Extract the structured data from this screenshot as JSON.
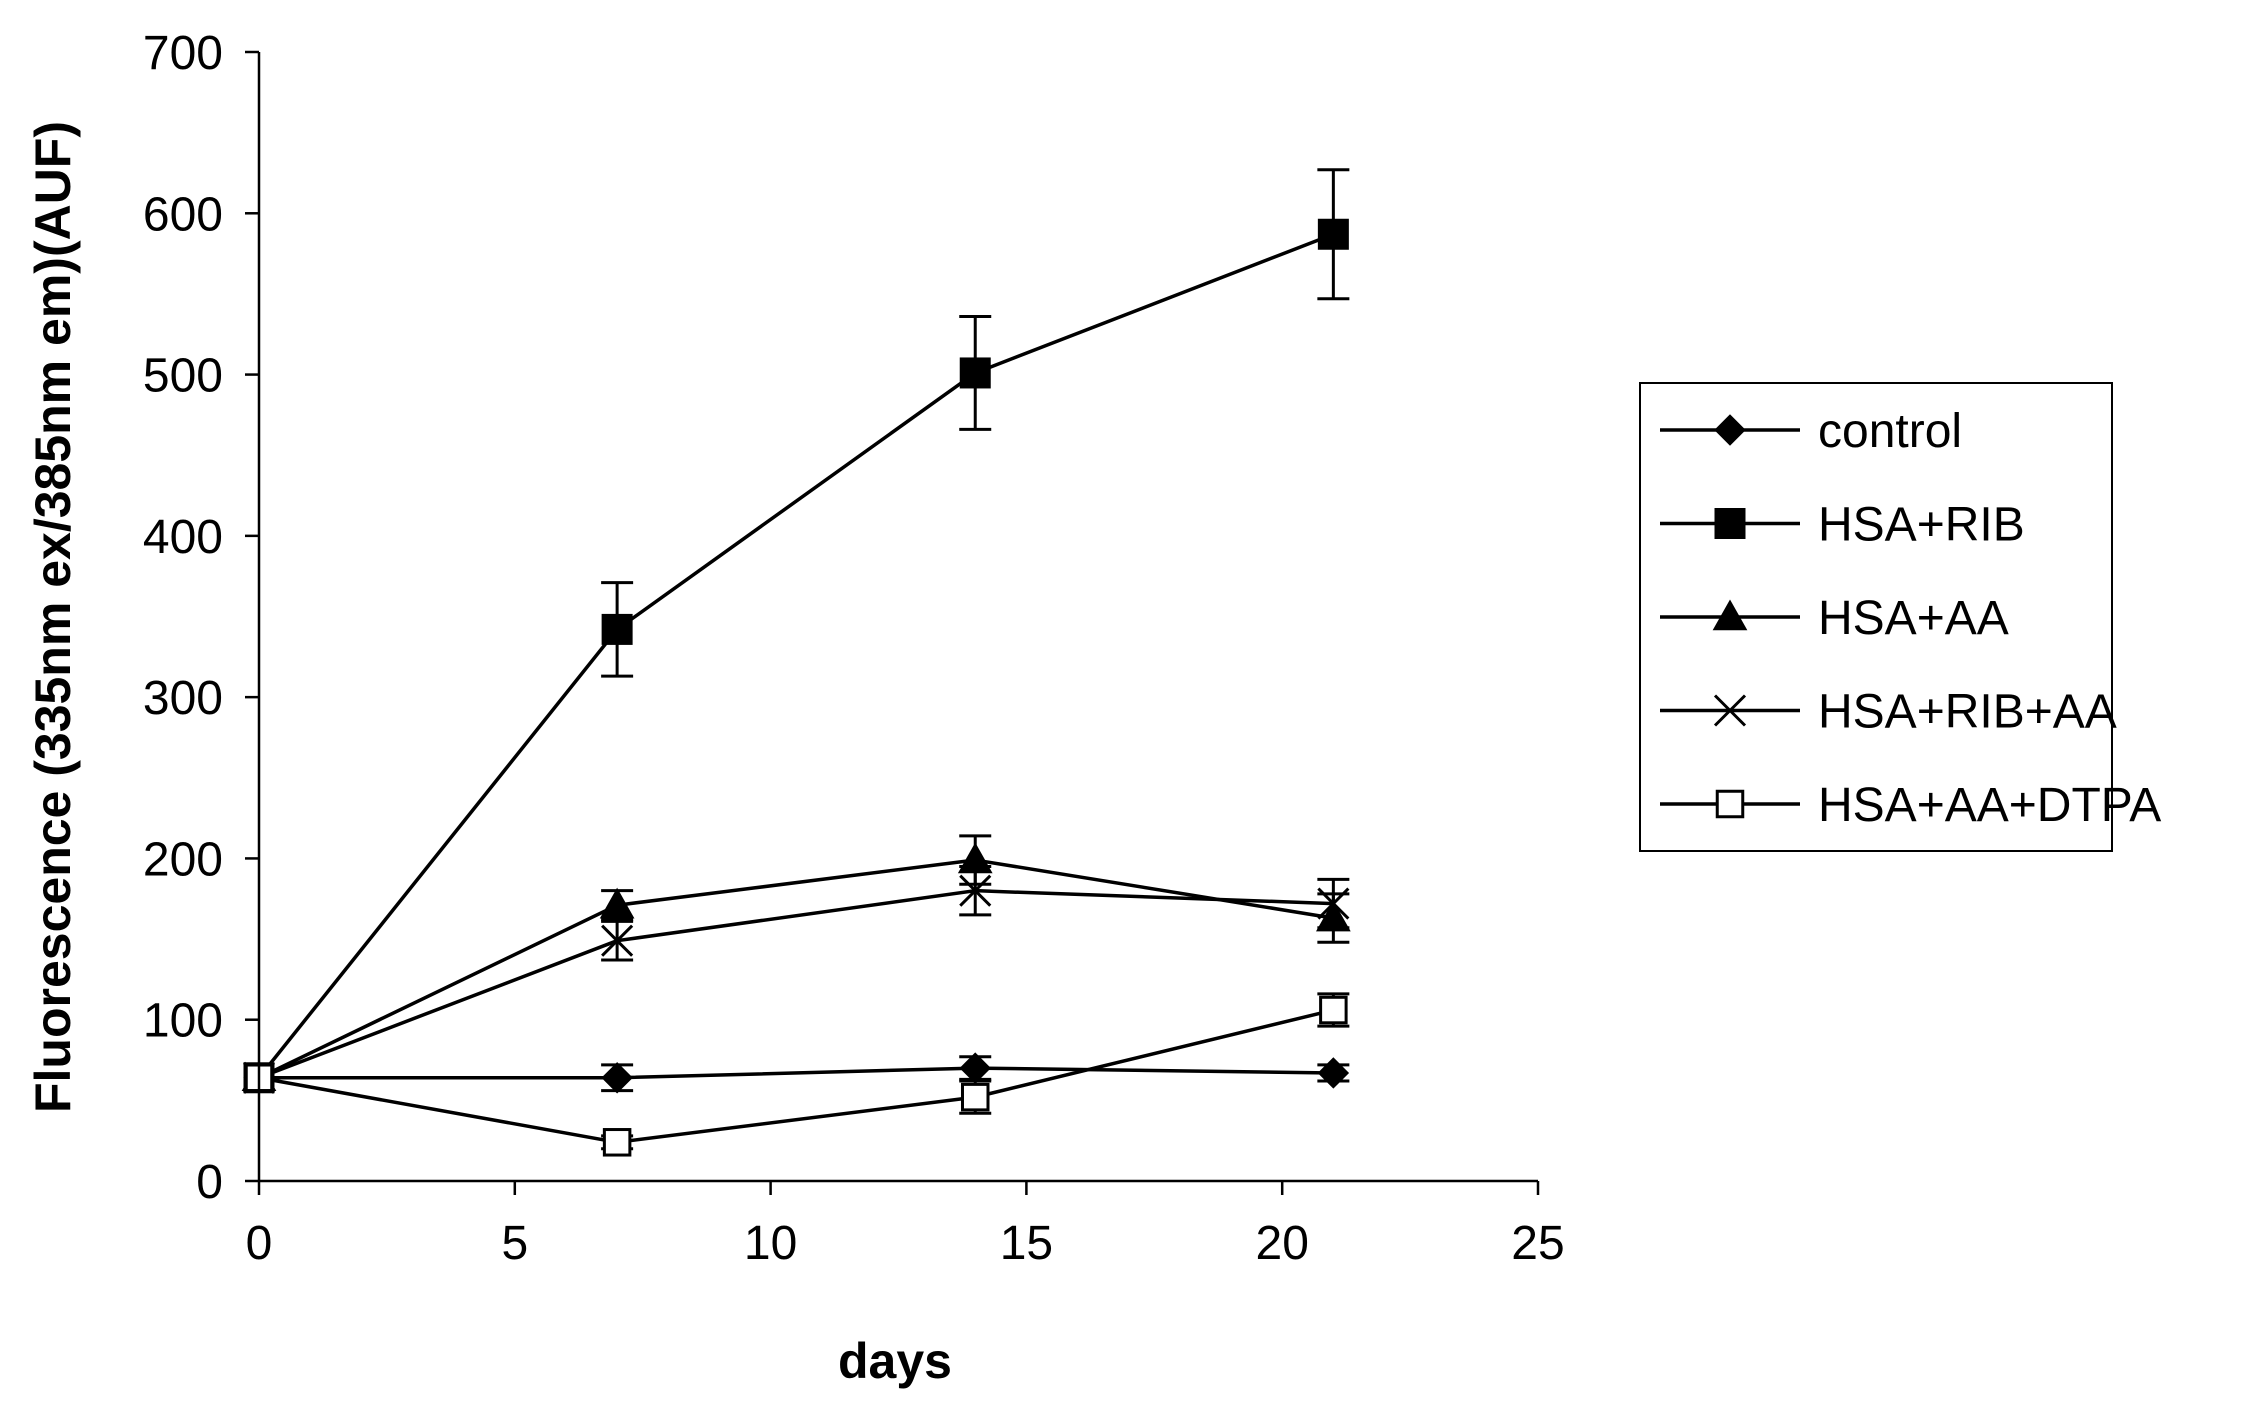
{
  "chart_data": {
    "type": "line",
    "xlabel": "days",
    "ylabel": "Fluorescence (335nm ex/385nm em)(AUF)",
    "xlim": [
      0,
      25
    ],
    "ylim": [
      0,
      700
    ],
    "xticks": [
      "0",
      "5",
      "10",
      "15",
      "20",
      "25"
    ],
    "yticks": [
      "0",
      "100",
      "200",
      "300",
      "400",
      "500",
      "600",
      "700"
    ],
    "grid": false,
    "legend_position": "right",
    "x": [
      0,
      7,
      14,
      21
    ],
    "series": [
      {
        "name": "control",
        "marker": "diamond",
        "values": [
          64,
          64,
          70,
          67
        ],
        "errors": [
          0,
          8,
          7,
          5
        ]
      },
      {
        "name": "HSA+RIB",
        "marker": "square",
        "values": [
          64,
          342,
          501,
          587
        ],
        "errors": [
          0,
          29,
          35,
          40
        ]
      },
      {
        "name": "HSA+AA",
        "marker": "triangle",
        "values": [
          64,
          171,
          199,
          163
        ],
        "errors": [
          0,
          9,
          15,
          15
        ]
      },
      {
        "name": "HSA+RIB+AA",
        "marker": "x",
        "values": [
          64,
          149,
          180,
          172
        ],
        "errors": [
          0,
          12,
          15,
          15
        ]
      },
      {
        "name": "HSA+AA+DTPA",
        "marker": "open-square",
        "values": [
          64,
          24,
          52,
          106
        ],
        "errors": [
          0,
          4,
          10,
          10
        ]
      }
    ]
  }
}
